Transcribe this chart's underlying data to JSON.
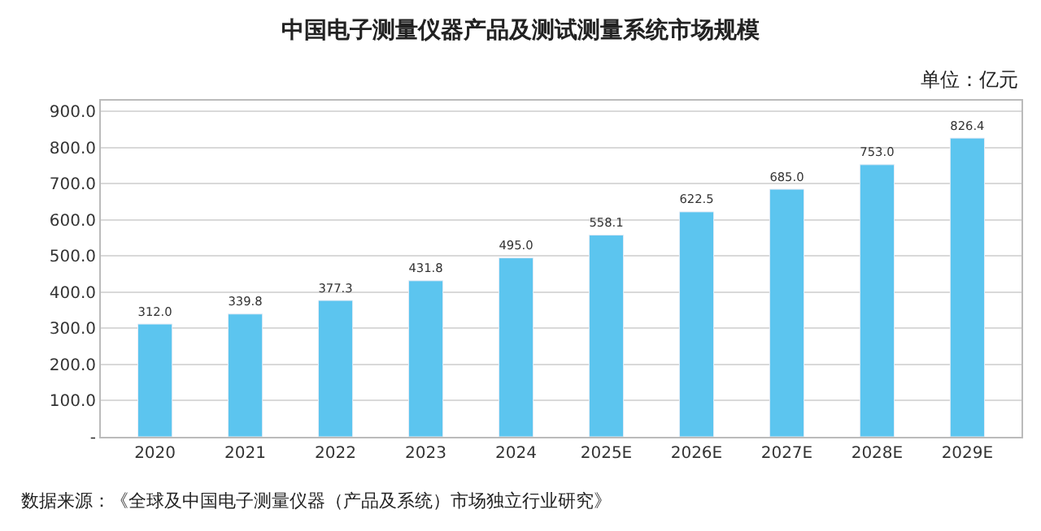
{
  "chart_data": {
    "type": "bar",
    "title": "中国电子测量仪器产品及测试测量系统市场规模",
    "annotations": [
      "单位：亿元",
      "数据来源：《全球及中国电子测量仪器（产品及系统）市场独立行业研究》"
    ],
    "categories": [
      "2020",
      "2021",
      "2022",
      "2023",
      "2024",
      "2025E",
      "2026E",
      "2027E",
      "2028E",
      "2029E"
    ],
    "values": [
      312.0,
      339.8,
      377.3,
      431.8,
      495.0,
      558.1,
      622.5,
      685.0,
      753.0,
      826.4
    ],
    "value_labels": [
      "312.0",
      "339.8",
      "377.3",
      "431.8",
      "495.0",
      "558.1",
      "622.5",
      "685.0",
      "753.0",
      "826.4"
    ],
    "color": "#5cc5ef",
    "ylim": [
      0,
      930
    ],
    "yticks": [
      {
        "value": 0,
        "label": "-"
      },
      {
        "value": 100,
        "label": "100.0"
      },
      {
        "value": 200,
        "label": "200.0"
      },
      {
        "value": 300,
        "label": "300.0"
      },
      {
        "value": 400,
        "label": "400.0"
      },
      {
        "value": 500,
        "label": "500.0"
      },
      {
        "value": 600,
        "label": "600.0"
      },
      {
        "value": 700,
        "label": "700.0"
      },
      {
        "value": 800,
        "label": "800.0"
      },
      {
        "value": 900,
        "label": "900.0"
      }
    ],
    "grid": "y",
    "legend": false
  }
}
